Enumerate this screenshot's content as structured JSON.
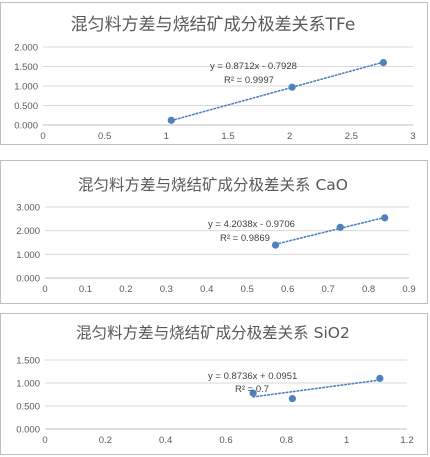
{
  "chart_data": [
    {
      "type": "scatter",
      "title": "混匀料方差与烧结矿成分极差关系TFe",
      "xlim": [
        0,
        3
      ],
      "ylim": [
        0,
        2
      ],
      "xticks": [
        0,
        0.5,
        1,
        1.5,
        2,
        2.5,
        3
      ],
      "xtick_labels": [
        "0",
        "0.5",
        "1",
        "1.5",
        "2",
        "2.5",
        "3"
      ],
      "yticks": [
        0,
        0.5,
        1,
        1.5,
        2
      ],
      "ytick_labels": [
        "0.000",
        "0.500",
        "1.000",
        "1.500",
        "2.000"
      ],
      "x": [
        1.04,
        2.02,
        2.76
      ],
      "y": [
        0.12,
        0.97,
        1.6
      ],
      "trendline": {
        "type": "linear",
        "slope": 0.8712,
        "intercept": -0.7928,
        "x_range": [
          1.04,
          2.76
        ]
      },
      "equation": "y = 0.8712x - 0.7928",
      "r2": "R² = 0.9997",
      "grid": "horizontal",
      "marker_color": "#4F81BD"
    },
    {
      "type": "scatter",
      "title": "混匀料方差与烧结矿成分极差关系 CaO",
      "xlim": [
        0,
        0.9
      ],
      "ylim": [
        0,
        3
      ],
      "xticks": [
        0,
        0.1,
        0.2,
        0.3,
        0.4,
        0.5,
        0.6,
        0.7,
        0.8,
        0.9
      ],
      "xtick_labels": [
        "0",
        "0.1",
        "0.2",
        "0.3",
        "0.4",
        "0.5",
        "0.6",
        "0.7",
        "0.8",
        "0.9"
      ],
      "yticks": [
        0,
        1,
        2,
        3
      ],
      "ytick_labels": [
        "0.000",
        "1.000",
        "2.000",
        "3.000"
      ],
      "x": [
        0.57,
        0.73,
        0.84
      ],
      "y": [
        1.39,
        2.14,
        2.54
      ],
      "trendline": {
        "type": "linear",
        "slope": 4.2038,
        "intercept": -0.9706,
        "x_range": [
          0.57,
          0.84
        ]
      },
      "equation": "y = 4.2038x - 0.9706",
      "r2": "R² = 0.9869",
      "grid": "horizontal",
      "marker_color": "#4F81BD"
    },
    {
      "type": "scatter",
      "title": "混匀料方差与烧结矿成分极差关系 SiO2",
      "xlim": [
        0,
        1.2
      ],
      "ylim": [
        0,
        1.5
      ],
      "xticks": [
        0,
        0.2,
        0.4,
        0.6,
        0.8,
        1,
        1.2
      ],
      "xtick_labels": [
        "0",
        "0.2",
        "0.4",
        "0.6",
        "0.8",
        "1",
        "1.2"
      ],
      "yticks": [
        0,
        0.5,
        1,
        1.5
      ],
      "ytick_labels": [
        "0.000",
        "0.500",
        "1.000",
        "1.500"
      ],
      "x": [
        0.69,
        0.82,
        1.11
      ],
      "y": [
        0.78,
        0.66,
        1.1
      ],
      "trendline": {
        "type": "linear",
        "slope": 0.8736,
        "intercept": 0.0951,
        "x_range": [
          0.69,
          1.11
        ]
      },
      "equation": "y = 0.8736x + 0.0951",
      "r2": "R² = 0.7",
      "grid": "horizontal",
      "marker_color": "#4F81BD"
    }
  ]
}
